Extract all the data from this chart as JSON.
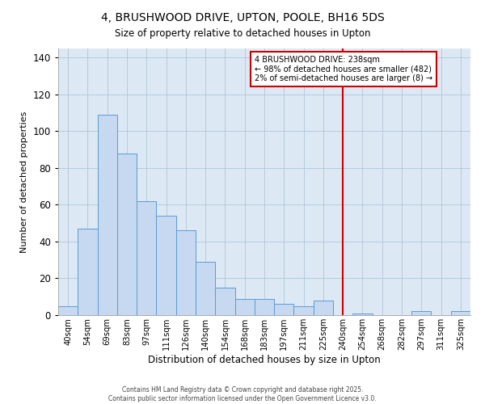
{
  "title": "4, BRUSHWOOD DRIVE, UPTON, POOLE, BH16 5DS",
  "subtitle": "Size of property relative to detached houses in Upton",
  "xlabel": "Distribution of detached houses by size in Upton",
  "ylabel": "Number of detached properties",
  "bar_labels": [
    "40sqm",
    "54sqm",
    "69sqm",
    "83sqm",
    "97sqm",
    "111sqm",
    "126sqm",
    "140sqm",
    "154sqm",
    "168sqm",
    "183sqm",
    "197sqm",
    "211sqm",
    "225sqm",
    "240sqm",
    "254sqm",
    "268sqm",
    "282sqm",
    "297sqm",
    "311sqm",
    "325sqm"
  ],
  "bar_values": [
    5,
    47,
    109,
    88,
    62,
    54,
    46,
    29,
    15,
    9,
    9,
    6,
    5,
    8,
    0,
    1,
    0,
    0,
    2,
    0,
    2
  ],
  "bar_color": "#c6d9f0",
  "bar_edge_color": "#5b9bd5",
  "plot_bg_color": "#dce9f5",
  "fig_bg_color": "#ffffff",
  "ylim": [
    0,
    145
  ],
  "yticks": [
    0,
    20,
    40,
    60,
    80,
    100,
    120,
    140
  ],
  "vline_x": 14,
  "vline_color": "#cc0000",
  "annotation_text_line1": "4 BRUSHWOOD DRIVE: 238sqm",
  "annotation_text_line2": "← 98% of detached houses are smaller (482)",
  "annotation_text_line3": "2% of semi-detached houses are larger (8) →",
  "footer_line1": "Contains HM Land Registry data © Crown copyright and database right 2025.",
  "footer_line2": "Contains public sector information licensed under the Open Government Licence v3.0.",
  "grid_color": "#b0c4d8"
}
